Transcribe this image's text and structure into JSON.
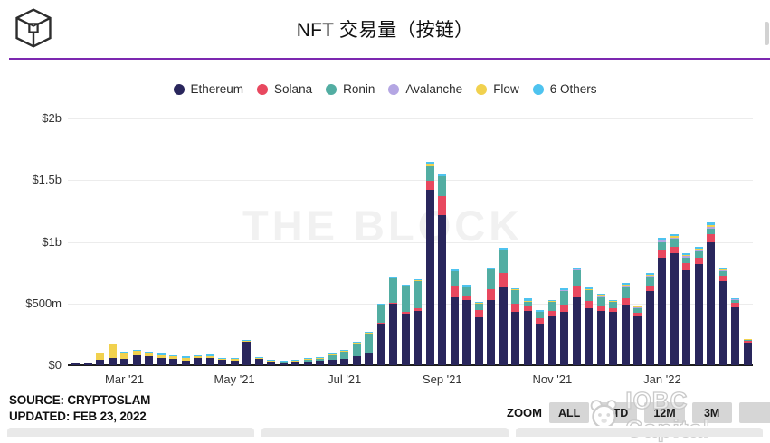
{
  "header": {
    "title": "NFT 交易量（按链）",
    "logo": "the-block-cube-logo"
  },
  "colors": {
    "divider": "#7c28b0",
    "ethereum": "#29265c",
    "solana": "#e8485f",
    "ronin": "#52ada2",
    "avalanche": "#b4a6e3",
    "flow": "#f1d14e",
    "others": "#4ec3ef",
    "grid": "#ececec",
    "axis": "#1c1c1c"
  },
  "legend": [
    {
      "label": "Ethereum",
      "color": "#29265c"
    },
    {
      "label": "Solana",
      "color": "#e8485f"
    },
    {
      "label": "Ronin",
      "color": "#52ada2"
    },
    {
      "label": "Avalanche",
      "color": "#b4a6e3"
    },
    {
      "label": "Flow",
      "color": "#f1d14e"
    },
    {
      "label": "6 Others",
      "color": "#4ec3ef"
    }
  ],
  "watermarks": {
    "center": "THE BLOCK",
    "corner": "IOBC Capital"
  },
  "footer": {
    "source": "SOURCE: CRYPTOSLAM",
    "updated": "UPDATED: FEB 23, 2022"
  },
  "zoom_controls": {
    "label": "ZOOM",
    "buttons": [
      "ALL",
      "YTD",
      "12M",
      "3M",
      ""
    ]
  },
  "chart_data": {
    "type": "bar",
    "stacked": true,
    "title": "NFT 交易量（按链）",
    "values_unit": "millions USD (weekly volume)",
    "ylim_millions": [
      0,
      2000
    ],
    "grid": "horizontal",
    "legend_position": "top-center",
    "yticks": [
      {
        "label": "$0",
        "value": 0
      },
      {
        "label": "$500m",
        "value": 500
      },
      {
        "label": "$1b",
        "value": 1000
      },
      {
        "label": "$1.5b",
        "value": 1500
      },
      {
        "label": "$2b",
        "value": 2000
      }
    ],
    "xticks": [
      {
        "label": "Mar '21",
        "index": 5
      },
      {
        "label": "May '21",
        "index": 14
      },
      {
        "label": "Jul '21",
        "index": 23
      },
      {
        "label": "Sep '21",
        "index": 31
      },
      {
        "label": "Nov '21",
        "index": 40
      },
      {
        "label": "Jan '22",
        "index": 49
      }
    ],
    "x": [
      "2021-02-01",
      "2021-02-08",
      "2021-02-15",
      "2021-02-22",
      "2021-03-01",
      "2021-03-08",
      "2021-03-15",
      "2021-03-22",
      "2021-03-29",
      "2021-04-05",
      "2021-04-12",
      "2021-04-19",
      "2021-04-26",
      "2021-05-03",
      "2021-05-10",
      "2021-05-17",
      "2021-05-24",
      "2021-05-31",
      "2021-06-07",
      "2021-06-14",
      "2021-06-21",
      "2021-06-28",
      "2021-07-05",
      "2021-07-12",
      "2021-07-19",
      "2021-07-26",
      "2021-08-02",
      "2021-08-09",
      "2021-08-16",
      "2021-08-23",
      "2021-08-30",
      "2021-09-06",
      "2021-09-13",
      "2021-09-20",
      "2021-09-27",
      "2021-10-04",
      "2021-10-11",
      "2021-10-18",
      "2021-10-25",
      "2021-11-01",
      "2021-11-08",
      "2021-11-15",
      "2021-11-22",
      "2021-11-29",
      "2021-12-06",
      "2021-12-13",
      "2021-12-20",
      "2021-12-27",
      "2022-01-03",
      "2022-01-10",
      "2022-01-17",
      "2022-01-24",
      "2022-01-31",
      "2022-02-07",
      "2022-02-14",
      "2022-02-21"
    ],
    "series": [
      {
        "name": "Ethereum",
        "color": "#29265c",
        "values": [
          16,
          13,
          42,
          58,
          48,
          78,
          70,
          58,
          48,
          40,
          56,
          62,
          42,
          40,
          188,
          48,
          28,
          24,
          28,
          32,
          36,
          46,
          52,
          72,
          100,
          340,
          500,
          415,
          440,
          1420,
          1215,
          550,
          525,
          390,
          530,
          640,
          430,
          440,
          340,
          395,
          430,
          555,
          460,
          440,
          430,
          490,
          395,
          600,
          870,
          905,
          770,
          820,
          1000,
          680,
          470,
          180
        ]
      },
      {
        "name": "Solana",
        "color": "#e8485f",
        "values": [
          0,
          0,
          0,
          0,
          0,
          0,
          0,
          0,
          0,
          0,
          0,
          0,
          0,
          0,
          0,
          0,
          0,
          0,
          0,
          0,
          0,
          0,
          0,
          0,
          0,
          4,
          6,
          15,
          25,
          75,
          155,
          95,
          40,
          55,
          85,
          105,
          65,
          35,
          40,
          45,
          60,
          90,
          60,
          45,
          30,
          55,
          28,
          45,
          60,
          55,
          55,
          55,
          60,
          45,
          35,
          15
        ]
      },
      {
        "name": "Ronin",
        "color": "#52ada2",
        "values": [
          0,
          0,
          0,
          0,
          0,
          0,
          0,
          0,
          0,
          0,
          0,
          0,
          0,
          0,
          4,
          0,
          0,
          2,
          5,
          11,
          19,
          36,
          58,
          105,
          158,
          145,
          200,
          212,
          220,
          120,
          160,
          115,
          72,
          55,
          160,
          185,
          115,
          40,
          50,
          75,
          110,
          125,
          85,
          75,
          50,
          95,
          42,
          75,
          70,
          65,
          50,
          50,
          45,
          35,
          20,
          8
        ]
      },
      {
        "name": "Avalanche",
        "color": "#b4a6e3",
        "values": [
          0,
          0,
          0,
          0,
          0,
          0,
          0,
          0,
          0,
          0,
          0,
          0,
          0,
          0,
          0,
          0,
          0,
          0,
          0,
          0,
          0,
          0,
          0,
          0,
          0,
          0,
          0,
          0,
          0,
          0,
          0,
          0,
          0,
          0,
          0,
          0,
          0,
          0,
          0,
          0,
          5,
          5,
          5,
          5,
          5,
          8,
          5,
          8,
          10,
          10,
          10,
          10,
          15,
          10,
          8,
          6
        ]
      },
      {
        "name": "Flow",
        "color": "#f1d14e",
        "values": [
          5,
          4,
          50,
          110,
          54,
          40,
          32,
          26,
          22,
          20,
          16,
          14,
          12,
          10,
          6,
          10,
          8,
          6,
          5,
          5,
          5,
          5,
          5,
          5,
          5,
          4,
          5,
          4,
          5,
          20,
          5,
          5,
          4,
          4,
          5,
          8,
          5,
          5,
          5,
          5,
          5,
          8,
          8,
          5,
          5,
          8,
          5,
          8,
          10,
          10,
          10,
          10,
          15,
          8,
          5,
          3
        ]
      },
      {
        "name": "6 Others",
        "color": "#4ec3ef",
        "values": [
          1,
          1,
          6,
          10,
          10,
          10,
          10,
          8,
          8,
          10,
          10,
          10,
          8,
          8,
          7,
          10,
          10,
          8,
          8,
          8,
          8,
          8,
          8,
          8,
          7,
          7,
          9,
          9,
          10,
          15,
          15,
          10,
          9,
          8,
          10,
          12,
          10,
          20,
          10,
          10,
          10,
          12,
          12,
          10,
          10,
          14,
          10,
          14,
          15,
          15,
          15,
          15,
          20,
          12,
          7,
          3
        ]
      }
    ]
  }
}
